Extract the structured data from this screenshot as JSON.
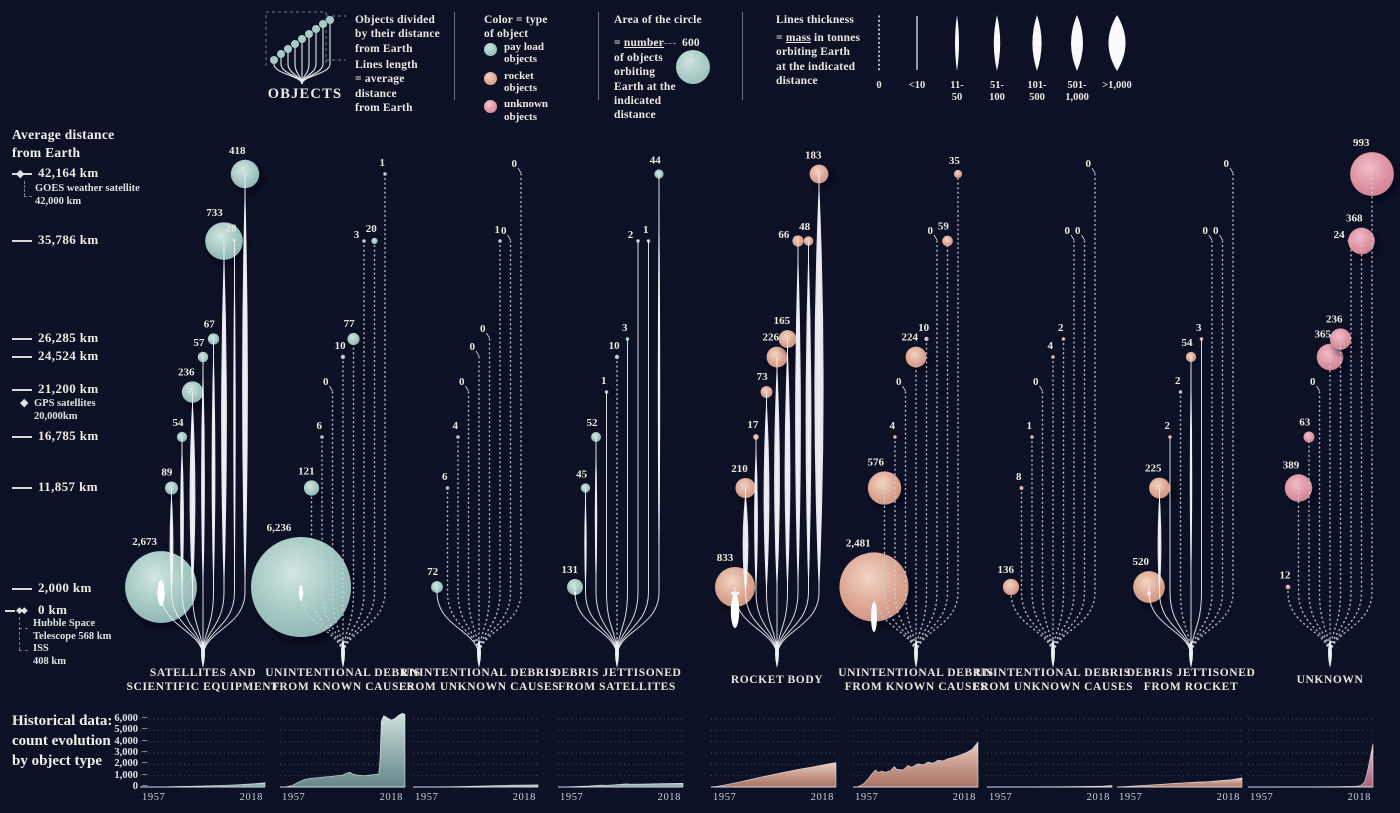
{
  "header": {
    "objects_label": "OBJECTS",
    "legend_divided": "Objects divided\nby their distance\nfrom Earth",
    "legend_lines": "Lines length\n= average\ndistance\nfrom Earth",
    "color_legend": {
      "title": "Color = type\nof object",
      "items": [
        {
          "label": "pay load\nobjects",
          "color": "#9ec6c1"
        },
        {
          "label": "rocket\nobjects",
          "color": "#e0a894"
        },
        {
          "label": "unknown\nobjects",
          "color": "#e092a1"
        }
      ]
    },
    "area_legend": {
      "title": "Area of the circle",
      "eq": "=",
      "u": "number",
      "ref_value": "600",
      "desc": "of objects\norbiting\nEarth at the\nindicated\ndistance"
    },
    "thickness_legend": {
      "title": "Lines thickness",
      "eq": "=",
      "u": "mass",
      "rest": " in tonnes\norbiting Earth\nat the indicated\ndistance",
      "bins": [
        {
          "label": "0",
          "hw": 0
        },
        {
          "label": "<10",
          "hw": 0.6
        },
        {
          "label": "11-\n50",
          "hw": 2
        },
        {
          "label": "51-\n100",
          "hw": 3.2
        },
        {
          "label": "101-\n500",
          "hw": 4.6
        },
        {
          "label": "501-\n1,000",
          "hw": 6
        },
        {
          "label": ">1,000",
          "hw": 8.5
        }
      ]
    }
  },
  "axis": {
    "title": "Average distance\nfrom Earth",
    "ticks": [
      {
        "label": "42,164 km",
        "km": 42164,
        "icon": "diamond"
      },
      {
        "label": "35,786 km",
        "km": 35786
      },
      {
        "label": "26,285 km",
        "km": 26285
      },
      {
        "label": "24,524 km",
        "km": 24524
      },
      {
        "label": "21,200 km",
        "km": 21200
      },
      {
        "label": "16,785 km",
        "km": 16785
      },
      {
        "label": "11,857 km",
        "km": 11857
      },
      {
        "label": "2,000 km",
        "km": 2000
      },
      {
        "label": "0 km",
        "km": 0,
        "icon": "double-diamond"
      }
    ],
    "annotations": [
      {
        "id": "goes",
        "text": "GOES weather satellite\n42,000 km"
      },
      {
        "id": "gps",
        "text": "GPS satellites\n20,000km"
      },
      {
        "id": "hubble",
        "text": "Hubble Space\nTelescope 568 km"
      },
      {
        "id": "iss",
        "text": "ISS\n408 km"
      }
    ]
  },
  "chart_data": {
    "type": "bubble-distance-columns",
    "levels_km_left_to_right": [
      2000,
      11857,
      16785,
      21200,
      24524,
      26285,
      35786,
      35786,
      42164
    ],
    "bubble_area_reference": {
      "count": 600,
      "radius_px": 17
    },
    "columns": [
      {
        "label": "SATELLITES AND\nSCIENTIFIC EQUIPMENT",
        "type": "payload",
        "x": 203,
        "hx": 140,
        "counts": [
          2673,
          89,
          54,
          236,
          57,
          67,
          733,
          28,
          418
        ],
        "mass": [
          5,
          3,
          3,
          4,
          3,
          3,
          4,
          2,
          4
        ],
        "history": [
          [
            0,
            0
          ],
          [
            0.08,
            5
          ],
          [
            0.2,
            20
          ],
          [
            0.3,
            40
          ],
          [
            0.4,
            60
          ],
          [
            0.5,
            90
          ],
          [
            0.6,
            120
          ],
          [
            0.7,
            160
          ],
          [
            0.8,
            210
          ],
          [
            0.9,
            280
          ],
          [
            1,
            380
          ]
        ]
      },
      {
        "label": "UNINTENTIONAL DEBRIS\nFROM KNOWN CAUSES",
        "type": "payload",
        "x": 343,
        "hx": 280,
        "counts": [
          6236,
          121,
          6,
          0,
          10,
          77,
          3,
          20,
          1
        ],
        "mass": [
          0,
          0,
          0,
          0,
          0,
          0,
          0,
          0,
          0
        ],
        "history": [
          [
            0,
            0
          ],
          [
            0.05,
            10
          ],
          [
            0.1,
            150
          ],
          [
            0.15,
            450
          ],
          [
            0.2,
            680
          ],
          [
            0.25,
            780
          ],
          [
            0.3,
            820
          ],
          [
            0.35,
            880
          ],
          [
            0.4,
            930
          ],
          [
            0.45,
            1000
          ],
          [
            0.5,
            1050
          ],
          [
            0.53,
            1220
          ],
          [
            0.56,
            1300
          ],
          [
            0.58,
            1150
          ],
          [
            0.62,
            1050
          ],
          [
            0.68,
            1000
          ],
          [
            0.72,
            1060
          ],
          [
            0.76,
            1100
          ],
          [
            0.79,
            1150
          ],
          [
            0.8,
            2500
          ],
          [
            0.81,
            5800
          ],
          [
            0.83,
            6300
          ],
          [
            0.86,
            6100
          ],
          [
            0.89,
            5900
          ],
          [
            0.92,
            6050
          ],
          [
            0.95,
            6350
          ],
          [
            0.98,
            6500
          ],
          [
            1,
            6400
          ]
        ]
      },
      {
        "label": "UNINTENTIONAL DEBRIS\nFROM UNKNOWN CAUSES",
        "type": "payload",
        "x": 479,
        "hx": 413,
        "counts": [
          72,
          6,
          4,
          0,
          0,
          0,
          1,
          0,
          0
        ],
        "mass": [
          1,
          0,
          0,
          0,
          0,
          0,
          0,
          0,
          0
        ],
        "history": [
          [
            0,
            0
          ],
          [
            0.15,
            10
          ],
          [
            0.3,
            30
          ],
          [
            0.45,
            60
          ],
          [
            0.55,
            90
          ],
          [
            0.65,
            120
          ],
          [
            0.75,
            150
          ],
          [
            0.85,
            170
          ],
          [
            1,
            185
          ]
        ]
      },
      {
        "label": "DEBRIS JETTISONED\nFROM SATELLITES",
        "type": "payload",
        "x": 617,
        "hx": 558,
        "counts": [
          131,
          45,
          52,
          1,
          10,
          3,
          2,
          1,
          44
        ],
        "mass": [
          2,
          2,
          2,
          1,
          0,
          1,
          1,
          1,
          2
        ],
        "history": [
          [
            0,
            0
          ],
          [
            0.08,
            10
          ],
          [
            0.15,
            40
          ],
          [
            0.25,
            90
          ],
          [
            0.3,
            130
          ],
          [
            0.35,
            170
          ],
          [
            0.38,
            150
          ],
          [
            0.45,
            190
          ],
          [
            0.5,
            230
          ],
          [
            0.55,
            280
          ],
          [
            0.58,
            250
          ],
          [
            0.65,
            260
          ],
          [
            0.75,
            280
          ],
          [
            0.85,
            300
          ],
          [
            1,
            330
          ]
        ]
      },
      {
        "label": "ROCKET BODY",
        "type": "rocket",
        "x": 777,
        "hx": 711,
        "counts": [
          833,
          210,
          17,
          73,
          226,
          165,
          66,
          48,
          183
        ],
        "mass": [
          5,
          4,
          3,
          4,
          4,
          4,
          4,
          4,
          5
        ],
        "history": [
          [
            0,
            0
          ],
          [
            0.05,
            60
          ],
          [
            0.1,
            160
          ],
          [
            0.2,
            380
          ],
          [
            0.3,
            620
          ],
          [
            0.4,
            870
          ],
          [
            0.5,
            1100
          ],
          [
            0.6,
            1330
          ],
          [
            0.7,
            1560
          ],
          [
            0.8,
            1750
          ],
          [
            0.9,
            1950
          ],
          [
            0.96,
            2080
          ],
          [
            1,
            2150
          ]
        ]
      },
      {
        "label": "UNINTENTIONAL DEBRIS\nFROM KNOWN CAUSES",
        "type": "rocket",
        "x": 916,
        "hx": 853,
        "counts": [
          2481,
          576,
          4,
          0,
          224,
          10,
          0,
          59,
          35
        ],
        "mass": [
          0,
          0,
          0,
          0,
          0,
          0,
          0,
          0,
          0
        ],
        "history": [
          [
            0,
            0
          ],
          [
            0.04,
            30
          ],
          [
            0.08,
            250
          ],
          [
            0.12,
            700
          ],
          [
            0.15,
            1150
          ],
          [
            0.18,
            1500
          ],
          [
            0.2,
            1280
          ],
          [
            0.23,
            1400
          ],
          [
            0.26,
            1300
          ],
          [
            0.3,
            1450
          ],
          [
            0.33,
            1800
          ],
          [
            0.35,
            1550
          ],
          [
            0.4,
            1500
          ],
          [
            0.44,
            1900
          ],
          [
            0.47,
            1750
          ],
          [
            0.52,
            2050
          ],
          [
            0.56,
            1950
          ],
          [
            0.6,
            2200
          ],
          [
            0.64,
            2100
          ],
          [
            0.68,
            2350
          ],
          [
            0.72,
            2300
          ],
          [
            0.76,
            2500
          ],
          [
            0.8,
            2600
          ],
          [
            0.85,
            2800
          ],
          [
            0.9,
            3000
          ],
          [
            0.95,
            3300
          ],
          [
            0.98,
            3700
          ],
          [
            1,
            3950
          ]
        ]
      },
      {
        "label": "UNINTENTIONAL DEBRIS\nFROM UNKNOWN CAUSES",
        "type": "rocket",
        "x": 1053,
        "hx": 987,
        "counts": [
          136,
          8,
          1,
          0,
          4,
          2,
          0,
          0,
          0
        ],
        "mass": [
          0,
          0,
          0,
          0,
          0,
          0,
          0,
          0,
          0
        ],
        "history": [
          [
            0,
            0
          ],
          [
            0.2,
            5
          ],
          [
            0.4,
            15
          ],
          [
            0.6,
            30
          ],
          [
            0.75,
            45
          ],
          [
            0.85,
            60
          ],
          [
            0.93,
            80
          ],
          [
            1,
            130
          ]
        ]
      },
      {
        "label": "DEBRIS JETTISONED\nFROM ROCKET",
        "type": "rocket",
        "x": 1191,
        "hx": 1117,
        "counts": [
          520,
          225,
          2,
          2,
          54,
          3,
          0,
          0,
          0
        ],
        "mass": [
          3,
          3,
          1,
          0,
          2,
          1,
          0,
          0,
          0
        ],
        "history": [
          [
            0,
            0
          ],
          [
            0.08,
            40
          ],
          [
            0.15,
            100
          ],
          [
            0.25,
            170
          ],
          [
            0.35,
            240
          ],
          [
            0.45,
            310
          ],
          [
            0.55,
            380
          ],
          [
            0.65,
            440
          ],
          [
            0.72,
            470
          ],
          [
            0.78,
            520
          ],
          [
            0.85,
            580
          ],
          [
            0.92,
            650
          ],
          [
            1,
            800
          ]
        ]
      },
      {
        "label": "UNKNOWN",
        "type": "unknown",
        "x": 1330,
        "hx": 1248,
        "counts": [
          12,
          389,
          63,
          0,
          365,
          236,
          24,
          368,
          993
        ],
        "mass": [
          0,
          0,
          0,
          0,
          0,
          0,
          0,
          0,
          0
        ],
        "history": [
          [
            0,
            0
          ],
          [
            0.5,
            10
          ],
          [
            0.7,
            25
          ],
          [
            0.8,
            40
          ],
          [
            0.86,
            60
          ],
          [
            0.9,
            120
          ],
          [
            0.93,
            400
          ],
          [
            0.95,
            1100
          ],
          [
            0.97,
            2200
          ],
          [
            0.985,
            3000
          ],
          [
            1,
            3800
          ]
        ]
      }
    ]
  },
  "history": {
    "title": "Historical data:\ncount evolution\nby object type",
    "y_ticks": [
      "6,000",
      "5,000",
      "4,000",
      "3,000",
      "2,000",
      "1,000",
      "0"
    ],
    "x_start": "1957",
    "x_end": "2018",
    "y_max": 6000
  }
}
